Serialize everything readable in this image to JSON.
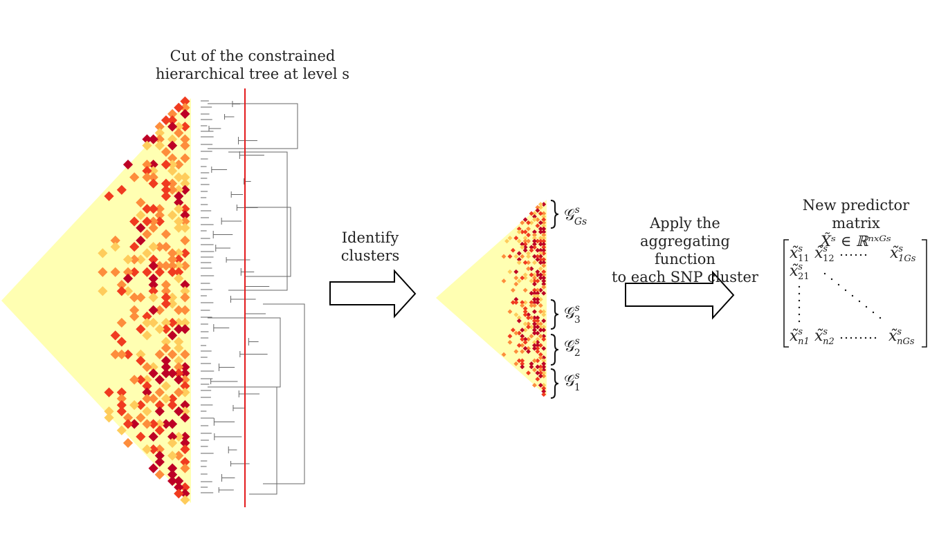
{
  "captions": {
    "cut_line1": "Cut of the constrained",
    "cut_line2": "hierarchical tree at level s",
    "identify_line1": "Identify",
    "identify_line2": "clusters",
    "apply_line1": "Apply the",
    "apply_line2": "aggregating function",
    "apply_line3": "to each SNP cluster",
    "new_matrix": "New predictor matrix"
  },
  "math": {
    "matrix_def": "X̃ˢ ∈ ℝⁿˣᴳˢ",
    "cluster_labels": [
      {
        "base": "𝒢",
        "sup": "s",
        "sub": "Gs"
      },
      {
        "base": "𝒢",
        "sup": "s",
        "sub": "3"
      },
      {
        "base": "𝒢",
        "sup": "s",
        "sub": "2"
      },
      {
        "base": "𝒢",
        "sup": "s",
        "sub": "1"
      }
    ],
    "matrix_entries": [
      {
        "base": "x̃",
        "sup": "s",
        "sub": "11"
      },
      {
        "base": "x̃",
        "sup": "s",
        "sub": "12"
      },
      {
        "base": "x̃",
        "sup": "s",
        "sub": "1Gs"
      },
      {
        "base": "x̃",
        "sup": "s",
        "sub": "21"
      },
      {
        "base": "x̃",
        "sup": "s",
        "sub": "n1"
      },
      {
        "base": "x̃",
        "sup": "s",
        "sub": "n2"
      },
      {
        "base": "x̃",
        "sup": "s",
        "sub": "nGs"
      }
    ]
  },
  "colors": {
    "heat_background": "#ffffb2",
    "heat_levels": [
      "#fecc5c",
      "#fd8d3c",
      "#f03b20",
      "#bd0026"
    ],
    "cut_line": "#e31a1c",
    "dendrogram": "#666666"
  }
}
